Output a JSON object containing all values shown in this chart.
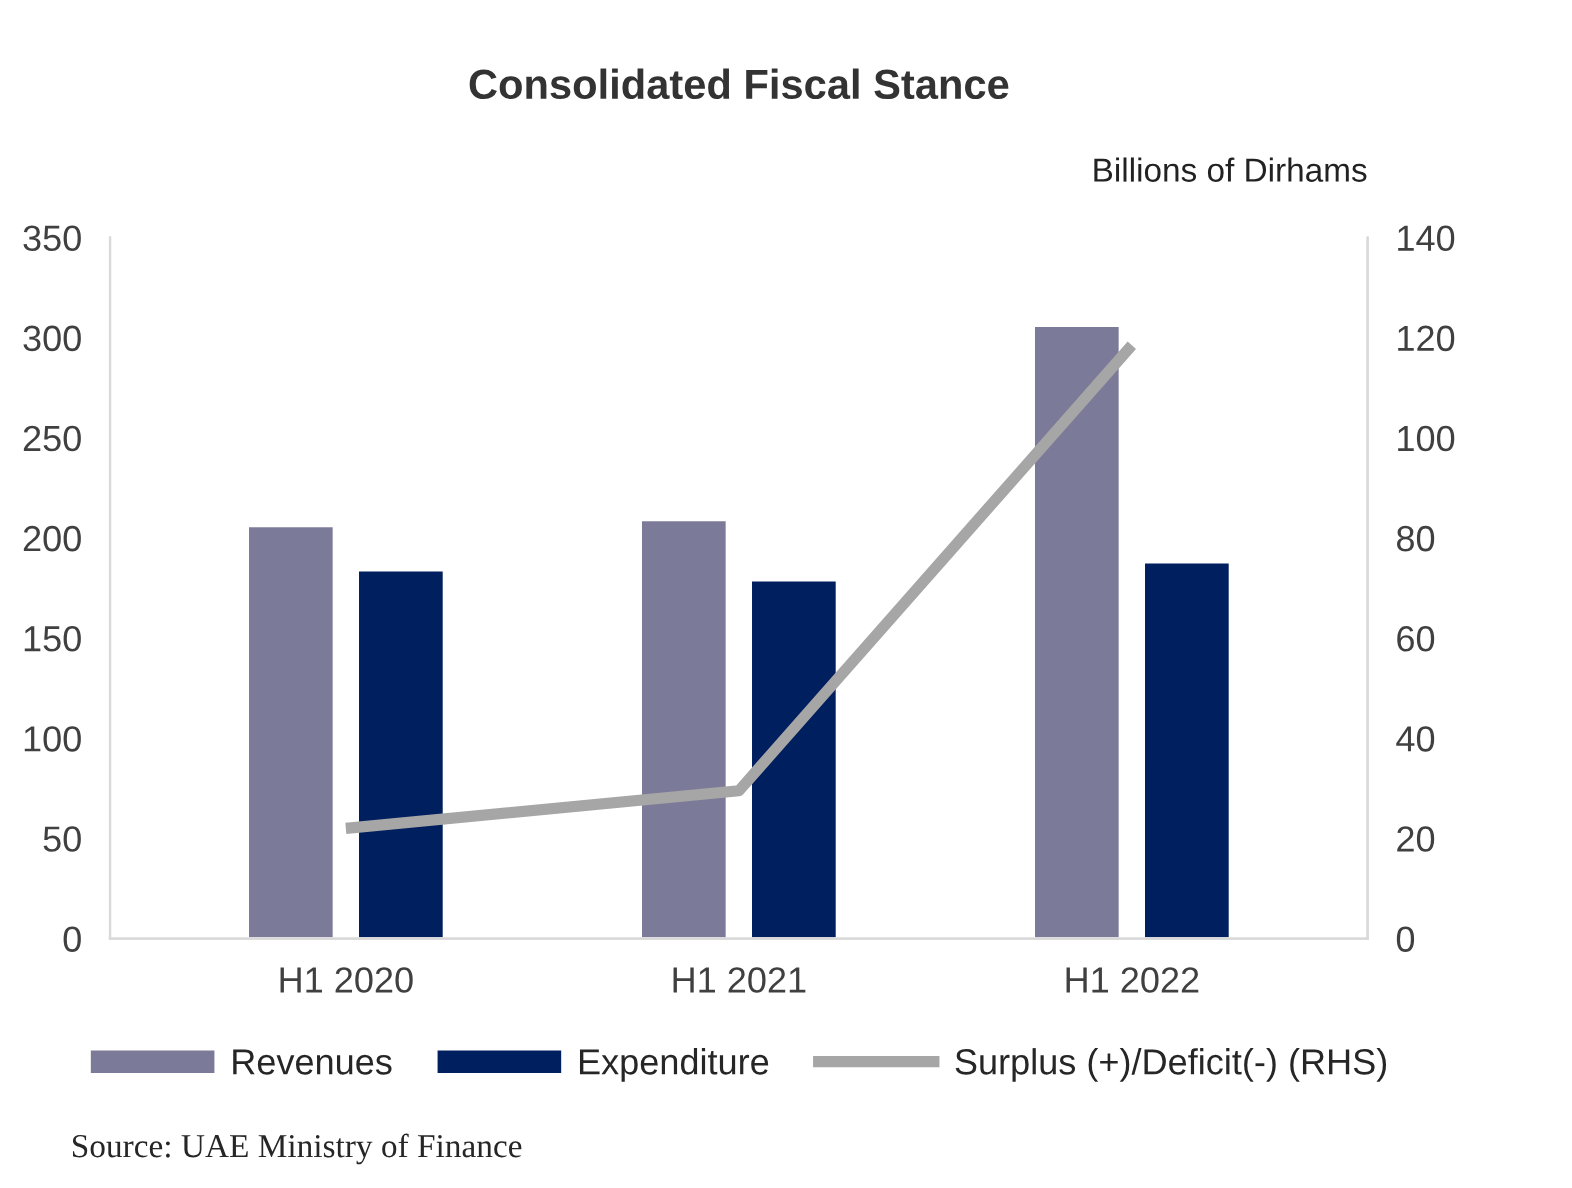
{
  "chart_data": {
    "type": "bar",
    "title": "Consolidated Fiscal Stance",
    "y2label": "Billions of Dirhams",
    "categories": [
      "H1 2020",
      "H1 2021",
      "H1 2022"
    ],
    "series": [
      {
        "name": "Revenues",
        "color": "#7b7b99",
        "values": [
          206,
          209,
          306
        ]
      },
      {
        "name": "Expenditure",
        "color": "#001f5f",
        "values": [
          184,
          179,
          188
        ]
      },
      {
        "name": "Surplus (+)/Deficit(-) (RHS)",
        "type": "line",
        "axis": "y2",
        "color": "#a6a6a6",
        "values": [
          22,
          29.5,
          118.5
        ]
      }
    ],
    "ylim": [
      0,
      350
    ],
    "yticks": [
      0,
      50,
      100,
      150,
      200,
      250,
      300,
      350
    ],
    "y2lim": [
      0,
      140
    ],
    "y2ticks": [
      0,
      20,
      40,
      60,
      80,
      100,
      120,
      140
    ],
    "grid": false,
    "legend": "bottom",
    "marker": "none",
    "annotations": [
      "Source: UAE Ministry of Finance"
    ]
  }
}
